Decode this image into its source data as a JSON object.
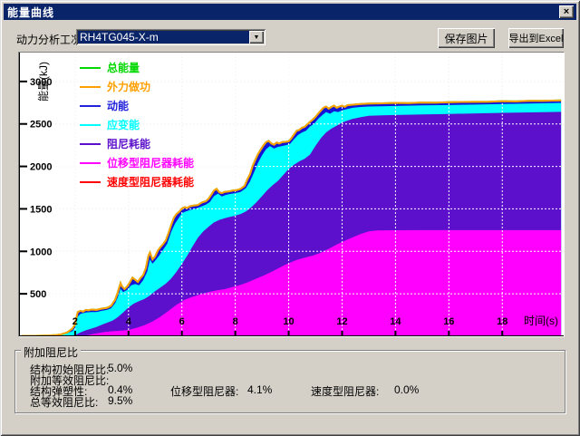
{
  "window": {
    "title": "能量曲线",
    "close_glyph": "×"
  },
  "toolbar": {
    "condition_label": "动力分析工况",
    "condition_value": "RH4TG045-X-m",
    "dropdown_arrow": "▼",
    "save_button": "保存图片",
    "export_button": "导出到Excel"
  },
  "damping_panel": {
    "title": "附加阻尼比",
    "rows": [
      {
        "label": "结构初始阻尼比:",
        "value": "5.0%"
      },
      {
        "label": "附加等效阻尼比:",
        "value": ""
      },
      {
        "label": "结构弹塑性:",
        "value": "0.4%"
      },
      {
        "label": "总等效阻尼比:",
        "value": "9.5%"
      }
    ],
    "extra": [
      {
        "label": "位移型阻尼器:",
        "value": "4.1%"
      },
      {
        "label": "速度型阻尼器:",
        "value": "0.0%"
      }
    ]
  },
  "chart_data": {
    "type": "area",
    "xlabel": "时间(s)",
    "ylabel": "能量(kJ)",
    "xlim": [
      -0.1,
      20.3
    ],
    "ylim": [
      0,
      3340
    ],
    "xticks": [
      2,
      4,
      6,
      8,
      10,
      12,
      14,
      16,
      18
    ],
    "yticks": [
      500,
      1000,
      1500,
      2000,
      2500,
      3000
    ],
    "grid": true,
    "legend_position": "top-left",
    "legend": [
      {
        "name": "总能量",
        "color": "#00d800"
      },
      {
        "name": "外力做功",
        "color": "#ffa000"
      },
      {
        "name": "动能",
        "color": "#2222dd"
      },
      {
        "name": "应变能",
        "color": "#00ffff"
      },
      {
        "name": "阻尼耗能",
        "color": "#5c10cc"
      },
      {
        "name": "位移型阻尼器耗能",
        "color": "#ff00ff"
      },
      {
        "name": "速度型阻尼器耗能",
        "color": "#ff0000"
      }
    ],
    "stacks": [
      {
        "name": "动能",
        "color": "#1414d8",
        "boundary": "total"
      },
      {
        "name": "应变能",
        "color": "#00ffff",
        "boundary": "strain"
      },
      {
        "name": "阻尼耗能",
        "color": "#5c10cc",
        "boundary": "damping"
      },
      {
        "name": "位移型阻尼器耗能",
        "color": "#ff00ff",
        "boundary": "displacement"
      }
    ],
    "lines": [
      {
        "name": "总能量",
        "color": "#00d800",
        "boundary": "total"
      },
      {
        "name": "外力做功",
        "color": "#ffa000",
        "boundary": "total"
      }
    ],
    "zero_series": [
      {
        "name": "速度型阻尼器耗能",
        "color": "#ff0000",
        "value": 0
      }
    ],
    "boundaries": {
      "total": [
        [
          0,
          5
        ],
        [
          0.5,
          5
        ],
        [
          1,
          10
        ],
        [
          1.3,
          15
        ],
        [
          1.5,
          25
        ],
        [
          1.7,
          45
        ],
        [
          1.9,
          90
        ],
        [
          2,
          140
        ],
        [
          2.05,
          220
        ],
        [
          2.1,
          285
        ],
        [
          2.2,
          300
        ],
        [
          2.3,
          290
        ],
        [
          2.4,
          310
        ],
        [
          2.5,
          305
        ],
        [
          2.6,
          315
        ],
        [
          2.8,
          310
        ],
        [
          3,
          325
        ],
        [
          3.2,
          335
        ],
        [
          3.35,
          360
        ],
        [
          3.5,
          430
        ],
        [
          3.6,
          520
        ],
        [
          3.7,
          625
        ],
        [
          3.75,
          590
        ],
        [
          3.85,
          555
        ],
        [
          3.95,
          585
        ],
        [
          4.05,
          635
        ],
        [
          4.15,
          690
        ],
        [
          4.25,
          665
        ],
        [
          4.35,
          640
        ],
        [
          4.45,
          685
        ],
        [
          4.55,
          720
        ],
        [
          4.65,
          800
        ],
        [
          4.75,
          950
        ],
        [
          4.8,
          985
        ],
        [
          4.9,
          905
        ],
        [
          5,
          940
        ],
        [
          5.1,
          1010
        ],
        [
          5.2,
          1050
        ],
        [
          5.3,
          1085
        ],
        [
          5.4,
          1130
        ],
        [
          5.5,
          1215
        ],
        [
          5.6,
          1310
        ],
        [
          5.7,
          1395
        ],
        [
          5.8,
          1440
        ],
        [
          5.9,
          1465
        ],
        [
          6,
          1505
        ],
        [
          6.1,
          1520
        ],
        [
          6.2,
          1510
        ],
        [
          6.3,
          1530
        ],
        [
          6.45,
          1540
        ],
        [
          6.6,
          1545
        ],
        [
          6.75,
          1575
        ],
        [
          6.9,
          1590
        ],
        [
          7,
          1620
        ],
        [
          7.1,
          1665
        ],
        [
          7.2,
          1715
        ],
        [
          7.3,
          1735
        ],
        [
          7.4,
          1695
        ],
        [
          7.5,
          1685
        ],
        [
          7.6,
          1700
        ],
        [
          7.75,
          1705
        ],
        [
          7.9,
          1715
        ],
        [
          8.05,
          1720
        ],
        [
          8.2,
          1735
        ],
        [
          8.35,
          1770
        ],
        [
          8.45,
          1845
        ],
        [
          8.55,
          1905
        ],
        [
          8.65,
          2005
        ],
        [
          8.75,
          2075
        ],
        [
          8.85,
          2145
        ],
        [
          8.95,
          2195
        ],
        [
          9.05,
          2245
        ],
        [
          9.15,
          2285
        ],
        [
          9.25,
          2300
        ],
        [
          9.35,
          2270
        ],
        [
          9.45,
          2255
        ],
        [
          9.55,
          2280
        ],
        [
          9.65,
          2270
        ],
        [
          9.75,
          2285
        ],
        [
          9.9,
          2290
        ],
        [
          10,
          2295
        ],
        [
          10.1,
          2330
        ],
        [
          10.2,
          2375
        ],
        [
          10.3,
          2420
        ],
        [
          10.4,
          2430
        ],
        [
          10.5,
          2455
        ],
        [
          10.6,
          2465
        ],
        [
          10.7,
          2495
        ],
        [
          10.8,
          2525
        ],
        [
          10.9,
          2550
        ],
        [
          11,
          2580
        ],
        [
          11.1,
          2620
        ],
        [
          11.2,
          2655
        ],
        [
          11.3,
          2690
        ],
        [
          11.4,
          2705
        ],
        [
          11.5,
          2680
        ],
        [
          11.6,
          2700
        ],
        [
          11.7,
          2715
        ],
        [
          11.8,
          2690
        ],
        [
          11.9,
          2705
        ],
        [
          12,
          2715
        ],
        [
          12.1,
          2700
        ],
        [
          12.2,
          2720
        ],
        [
          12.35,
          2725
        ],
        [
          12.5,
          2730
        ],
        [
          12.7,
          2735
        ],
        [
          13,
          2740
        ],
        [
          13.5,
          2742
        ],
        [
          14,
          2748
        ],
        [
          14.5,
          2745
        ],
        [
          15,
          2752
        ],
        [
          15.5,
          2750
        ],
        [
          16,
          2755
        ],
        [
          16.5,
          2758
        ],
        [
          17,
          2760
        ],
        [
          17.5,
          2762
        ],
        [
          18,
          2768
        ],
        [
          18.5,
          2765
        ],
        [
          19,
          2772
        ],
        [
          19.5,
          2772
        ],
        [
          20.2,
          2778
        ]
      ],
      "strain": [
        [
          0,
          0
        ],
        [
          1,
          5
        ],
        [
          1.5,
          15
        ],
        [
          1.9,
          60
        ],
        [
          2,
          100
        ],
        [
          2.1,
          230
        ],
        [
          2.2,
          265
        ],
        [
          2.4,
          280
        ],
        [
          2.6,
          285
        ],
        [
          2.8,
          285
        ],
        [
          3,
          300
        ],
        [
          3.2,
          310
        ],
        [
          3.35,
          330
        ],
        [
          3.5,
          390
        ],
        [
          3.6,
          460
        ],
        [
          3.7,
          560
        ],
        [
          3.8,
          520
        ],
        [
          3.95,
          545
        ],
        [
          4.1,
          600
        ],
        [
          4.25,
          615
        ],
        [
          4.4,
          600
        ],
        [
          4.55,
          660
        ],
        [
          4.7,
          760
        ],
        [
          4.8,
          905
        ],
        [
          4.9,
          855
        ],
        [
          5,
          890
        ],
        [
          5.15,
          950
        ],
        [
          5.3,
          1020
        ],
        [
          5.45,
          1090
        ],
        [
          5.6,
          1230
        ],
        [
          5.75,
          1330
        ],
        [
          5.9,
          1400
        ],
        [
          6,
          1450
        ],
        [
          6.15,
          1470
        ],
        [
          6.3,
          1485
        ],
        [
          6.5,
          1500
        ],
        [
          6.7,
          1525
        ],
        [
          6.9,
          1550
        ],
        [
          7.05,
          1580
        ],
        [
          7.2,
          1650
        ],
        [
          7.35,
          1680
        ],
        [
          7.5,
          1645
        ],
        [
          7.65,
          1665
        ],
        [
          7.8,
          1675
        ],
        [
          8,
          1685
        ],
        [
          8.2,
          1700
        ],
        [
          8.4,
          1745
        ],
        [
          8.55,
          1820
        ],
        [
          8.7,
          1930
        ],
        [
          8.85,
          2040
        ],
        [
          9,
          2130
        ],
        [
          9.15,
          2200
        ],
        [
          9.3,
          2240
        ],
        [
          9.45,
          2210
        ],
        [
          9.6,
          2230
        ],
        [
          9.75,
          2240
        ],
        [
          9.9,
          2250
        ],
        [
          10.05,
          2265
        ],
        [
          10.2,
          2320
        ],
        [
          10.35,
          2370
        ],
        [
          10.5,
          2400
        ],
        [
          10.65,
          2420
        ],
        [
          10.8,
          2470
        ],
        [
          10.95,
          2500
        ],
        [
          11.1,
          2560
        ],
        [
          11.25,
          2600
        ],
        [
          11.4,
          2640
        ],
        [
          11.55,
          2620
        ],
        [
          11.7,
          2650
        ],
        [
          11.85,
          2640
        ],
        [
          12,
          2660
        ],
        [
          12.2,
          2675
        ],
        [
          12.4,
          2690
        ],
        [
          12.7,
          2700
        ],
        [
          13,
          2705
        ],
        [
          13.5,
          2708
        ],
        [
          14,
          2712
        ],
        [
          15,
          2718
        ],
        [
          16,
          2722
        ],
        [
          17,
          2728
        ],
        [
          18,
          2734
        ],
        [
          19,
          2740
        ],
        [
          20.2,
          2748
        ]
      ],
      "damping": [
        [
          0,
          0
        ],
        [
          1.8,
          5
        ],
        [
          2,
          15
        ],
        [
          2.2,
          45
        ],
        [
          2.4,
          70
        ],
        [
          2.6,
          90
        ],
        [
          2.8,
          110
        ],
        [
          3,
          135
        ],
        [
          3.2,
          160
        ],
        [
          3.4,
          185
        ],
        [
          3.6,
          225
        ],
        [
          3.8,
          280
        ],
        [
          4,
          340
        ],
        [
          4.2,
          385
        ],
        [
          4.4,
          415
        ],
        [
          4.6,
          440
        ],
        [
          4.8,
          480
        ],
        [
          5,
          530
        ],
        [
          5.2,
          575
        ],
        [
          5.4,
          620
        ],
        [
          5.6,
          680
        ],
        [
          5.8,
          760
        ],
        [
          6,
          850
        ],
        [
          6.2,
          950
        ],
        [
          6.4,
          1060
        ],
        [
          6.6,
          1160
        ],
        [
          6.8,
          1235
        ],
        [
          7,
          1290
        ],
        [
          7.2,
          1340
        ],
        [
          7.4,
          1370
        ],
        [
          7.6,
          1390
        ],
        [
          7.8,
          1405
        ],
        [
          8,
          1420
        ],
        [
          8.2,
          1440
        ],
        [
          8.4,
          1470
        ],
        [
          8.6,
          1520
        ],
        [
          8.8,
          1580
        ],
        [
          9,
          1650
        ],
        [
          9.2,
          1720
        ],
        [
          9.4,
          1780
        ],
        [
          9.6,
          1830
        ],
        [
          9.8,
          1900
        ],
        [
          10,
          1970
        ],
        [
          10.2,
          2020
        ],
        [
          10.4,
          2060
        ],
        [
          10.6,
          2090
        ],
        [
          10.8,
          2140
        ],
        [
          11,
          2240
        ],
        [
          11.2,
          2330
        ],
        [
          11.4,
          2400
        ],
        [
          11.6,
          2445
        ],
        [
          11.8,
          2480
        ],
        [
          12,
          2515
        ],
        [
          12.2,
          2540
        ],
        [
          12.4,
          2560
        ],
        [
          12.7,
          2580
        ],
        [
          13,
          2595
        ],
        [
          13.5,
          2600
        ],
        [
          14,
          2605
        ],
        [
          15,
          2612
        ],
        [
          16,
          2618
        ],
        [
          17,
          2624
        ],
        [
          18,
          2630
        ],
        [
          19,
          2636
        ],
        [
          20.2,
          2642
        ]
      ],
      "displacement": [
        [
          0,
          0
        ],
        [
          2.2,
          5
        ],
        [
          2.5,
          15
        ],
        [
          2.8,
          35
        ],
        [
          3.1,
          50
        ],
        [
          3.4,
          60
        ],
        [
          3.7,
          65
        ],
        [
          4,
          75
        ],
        [
          4.3,
          100
        ],
        [
          4.6,
          130
        ],
        [
          4.9,
          175
        ],
        [
          5.2,
          230
        ],
        [
          5.5,
          300
        ],
        [
          5.8,
          370
        ],
        [
          6.1,
          430
        ],
        [
          6.4,
          465
        ],
        [
          6.7,
          495
        ],
        [
          7,
          520
        ],
        [
          7.3,
          540
        ],
        [
          7.6,
          555
        ],
        [
          7.9,
          580
        ],
        [
          8.2,
          605
        ],
        [
          8.5,
          640
        ],
        [
          8.8,
          680
        ],
        [
          9.1,
          720
        ],
        [
          9.4,
          765
        ],
        [
          9.7,
          815
        ],
        [
          10,
          860
        ],
        [
          10.3,
          900
        ],
        [
          10.6,
          925
        ],
        [
          10.9,
          950
        ],
        [
          11.2,
          985
        ],
        [
          11.5,
          1030
        ],
        [
          11.8,
          1080
        ],
        [
          12.1,
          1125
        ],
        [
          12.4,
          1165
        ],
        [
          12.7,
          1205
        ],
        [
          13,
          1235
        ],
        [
          13.3,
          1245
        ],
        [
          14,
          1248
        ],
        [
          15,
          1250
        ],
        [
          16,
          1250
        ],
        [
          17,
          1250
        ],
        [
          18,
          1250
        ],
        [
          19,
          1250
        ],
        [
          20.2,
          1250
        ]
      ]
    }
  }
}
